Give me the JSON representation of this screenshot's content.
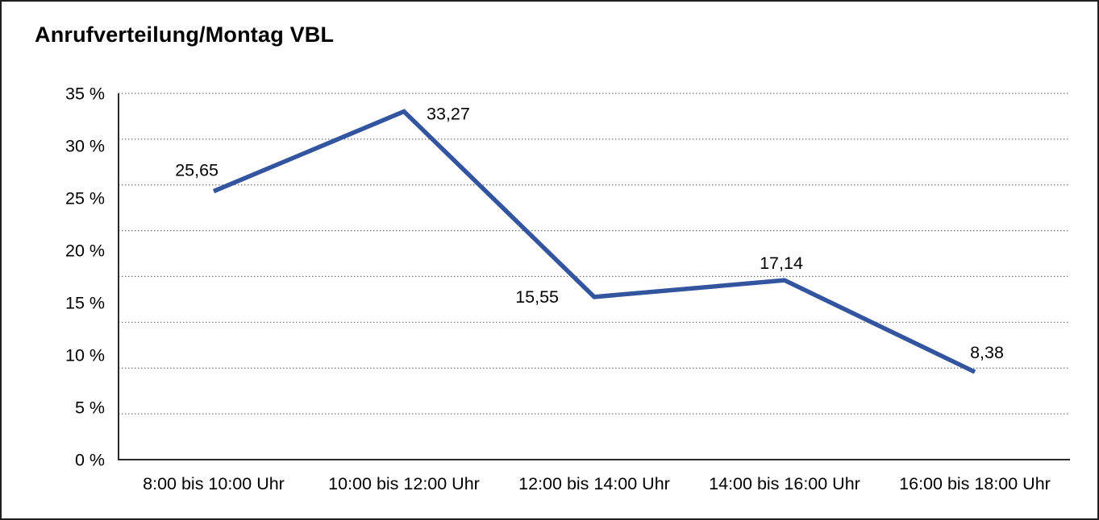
{
  "page": {
    "background": "#ffffff",
    "border_color": "#1f1f1f"
  },
  "chart_data": {
    "type": "line",
    "title": "Anrufverteilung/Montag VBL",
    "categories": [
      "8:00 bis 10:00 Uhr",
      "10:00 bis 12:00 Uhr",
      "12:00 bis 14:00 Uhr",
      "14:00 bis 16:00 Uhr",
      "16:00 bis 18:00 Uhr"
    ],
    "values": [
      25.65,
      33.27,
      15.55,
      17.14,
      8.38
    ],
    "point_labels": [
      "25,65",
      "33,27",
      "15,55",
      "17,14",
      "8,38"
    ],
    "point_label_positions": [
      "above-left",
      "right",
      "left",
      "above",
      "above-right"
    ],
    "y_ticks": [
      {
        "value": 0,
        "label": "0 %"
      },
      {
        "value": 5,
        "label": "5 %"
      },
      {
        "value": 10,
        "label": "10 %"
      },
      {
        "value": 15,
        "label": "15 %"
      },
      {
        "value": 20,
        "label": "20 %"
      },
      {
        "value": 25,
        "label": "25 %"
      },
      {
        "value": 30,
        "label": "30 %"
      },
      {
        "value": 35,
        "label": "35 %"
      }
    ],
    "ylim": [
      0,
      35
    ],
    "xlabel": "",
    "ylabel": "",
    "legend": null,
    "grid": {
      "style": "dotted",
      "horizontal_divisions": 8,
      "color": "#6e6e6e"
    },
    "line_color": "#33549e",
    "axis_color": "#2b2b2b",
    "text_color": "#000000"
  }
}
